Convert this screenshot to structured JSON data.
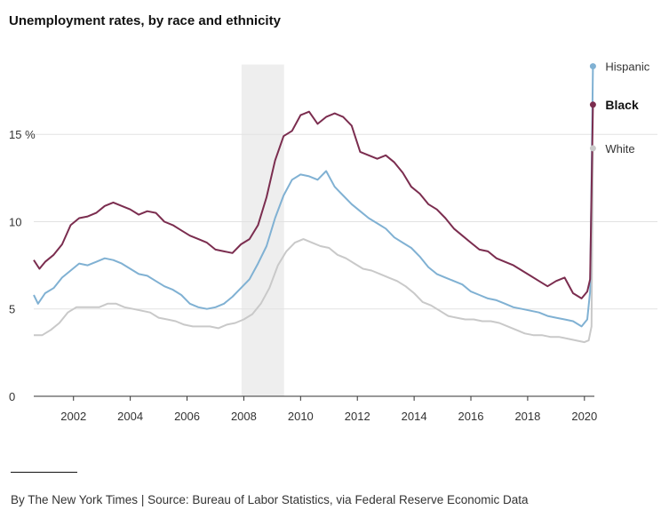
{
  "title": "Unemployment rates, by race and ethnicity",
  "credit": "By The New York Times | Source: Bureau of Labor Statistics, via Federal Reserve Economic Data",
  "chart_data": {
    "type": "line",
    "title": "Unemployment rates, by race and ethnicity",
    "xlabel": "",
    "ylabel": "",
    "xlim": [
      2000.6,
      2020.35
    ],
    "ylim": [
      0,
      19
    ],
    "x_ticks": [
      2002,
      2004,
      2006,
      2008,
      2010,
      2012,
      2014,
      2016,
      2018,
      2020
    ],
    "x_tick_labels": [
      "2002",
      "2004",
      "2006",
      "2008",
      "2010",
      "2012",
      "2014",
      "2016",
      "2018",
      "2020"
    ],
    "y_ticks": [
      0,
      5,
      10,
      15
    ],
    "y_tick_labels": [
      "0",
      "5",
      "10",
      "15 %"
    ],
    "grid": "horizontal",
    "shaded_period": [
      2007.92,
      2009.42
    ],
    "shade_color": "#eeeeee",
    "series": [
      {
        "name": "Hispanic",
        "color": "#80b1d3",
        "bold_label": false,
        "points": [
          [
            2000.6,
            5.8
          ],
          [
            2000.75,
            5.3
          ],
          [
            2001.0,
            5.9
          ],
          [
            2001.3,
            6.2
          ],
          [
            2001.6,
            6.8
          ],
          [
            2001.9,
            7.2
          ],
          [
            2002.2,
            7.6
          ],
          [
            2002.5,
            7.5
          ],
          [
            2002.8,
            7.7
          ],
          [
            2003.1,
            7.9
          ],
          [
            2003.4,
            7.8
          ],
          [
            2003.7,
            7.6
          ],
          [
            2004.0,
            7.3
          ],
          [
            2004.3,
            7.0
          ],
          [
            2004.6,
            6.9
          ],
          [
            2004.9,
            6.6
          ],
          [
            2005.2,
            6.3
          ],
          [
            2005.5,
            6.1
          ],
          [
            2005.8,
            5.8
          ],
          [
            2006.1,
            5.3
          ],
          [
            2006.4,
            5.1
          ],
          [
            2006.7,
            5.0
          ],
          [
            2007.0,
            5.1
          ],
          [
            2007.3,
            5.3
          ],
          [
            2007.6,
            5.7
          ],
          [
            2007.9,
            6.2
          ],
          [
            2008.2,
            6.7
          ],
          [
            2008.5,
            7.6
          ],
          [
            2008.8,
            8.6
          ],
          [
            2009.1,
            10.2
          ],
          [
            2009.4,
            11.5
          ],
          [
            2009.7,
            12.4
          ],
          [
            2010.0,
            12.7
          ],
          [
            2010.3,
            12.6
          ],
          [
            2010.6,
            12.4
          ],
          [
            2010.9,
            12.9
          ],
          [
            2011.2,
            12.0
          ],
          [
            2011.5,
            11.5
          ],
          [
            2011.8,
            11.0
          ],
          [
            2012.1,
            10.6
          ],
          [
            2012.4,
            10.2
          ],
          [
            2012.7,
            9.9
          ],
          [
            2013.0,
            9.6
          ],
          [
            2013.3,
            9.1
          ],
          [
            2013.6,
            8.8
          ],
          [
            2013.9,
            8.5
          ],
          [
            2014.2,
            8.0
          ],
          [
            2014.5,
            7.4
          ],
          [
            2014.8,
            7.0
          ],
          [
            2015.1,
            6.8
          ],
          [
            2015.4,
            6.6
          ],
          [
            2015.7,
            6.4
          ],
          [
            2016.0,
            6.0
          ],
          [
            2016.3,
            5.8
          ],
          [
            2016.6,
            5.6
          ],
          [
            2016.9,
            5.5
          ],
          [
            2017.2,
            5.3
          ],
          [
            2017.5,
            5.1
          ],
          [
            2017.8,
            5.0
          ],
          [
            2018.1,
            4.9
          ],
          [
            2018.4,
            4.8
          ],
          [
            2018.7,
            4.6
          ],
          [
            2019.0,
            4.5
          ],
          [
            2019.3,
            4.4
          ],
          [
            2019.6,
            4.3
          ],
          [
            2019.9,
            4.0
          ],
          [
            2020.1,
            4.4
          ],
          [
            2020.2,
            6.0
          ],
          [
            2020.3,
            18.9
          ]
        ]
      },
      {
        "name": "Black",
        "color": "#7b2d4f",
        "bold_label": true,
        "points": [
          [
            2000.6,
            7.8
          ],
          [
            2000.8,
            7.3
          ],
          [
            2001.0,
            7.7
          ],
          [
            2001.3,
            8.1
          ],
          [
            2001.6,
            8.7
          ],
          [
            2001.9,
            9.8
          ],
          [
            2002.2,
            10.2
          ],
          [
            2002.5,
            10.3
          ],
          [
            2002.8,
            10.5
          ],
          [
            2003.1,
            10.9
          ],
          [
            2003.4,
            11.1
          ],
          [
            2003.7,
            10.9
          ],
          [
            2004.0,
            10.7
          ],
          [
            2004.3,
            10.4
          ],
          [
            2004.6,
            10.6
          ],
          [
            2004.9,
            10.5
          ],
          [
            2005.2,
            10.0
          ],
          [
            2005.5,
            9.8
          ],
          [
            2005.8,
            9.5
          ],
          [
            2006.1,
            9.2
          ],
          [
            2006.4,
            9.0
          ],
          [
            2006.7,
            8.8
          ],
          [
            2007.0,
            8.4
          ],
          [
            2007.3,
            8.3
          ],
          [
            2007.6,
            8.2
          ],
          [
            2007.9,
            8.7
          ],
          [
            2008.2,
            9.0
          ],
          [
            2008.5,
            9.8
          ],
          [
            2008.8,
            11.4
          ],
          [
            2009.1,
            13.5
          ],
          [
            2009.4,
            14.9
          ],
          [
            2009.7,
            15.2
          ],
          [
            2010.0,
            16.1
          ],
          [
            2010.3,
            16.3
          ],
          [
            2010.6,
            15.6
          ],
          [
            2010.9,
            16.0
          ],
          [
            2011.2,
            16.2
          ],
          [
            2011.5,
            16.0
          ],
          [
            2011.8,
            15.5
          ],
          [
            2012.1,
            14.0
          ],
          [
            2012.4,
            13.8
          ],
          [
            2012.7,
            13.6
          ],
          [
            2013.0,
            13.8
          ],
          [
            2013.3,
            13.4
          ],
          [
            2013.6,
            12.8
          ],
          [
            2013.9,
            12.0
          ],
          [
            2014.2,
            11.6
          ],
          [
            2014.5,
            11.0
          ],
          [
            2014.8,
            10.7
          ],
          [
            2015.1,
            10.2
          ],
          [
            2015.4,
            9.6
          ],
          [
            2015.7,
            9.2
          ],
          [
            2016.0,
            8.8
          ],
          [
            2016.3,
            8.4
          ],
          [
            2016.6,
            8.3
          ],
          [
            2016.9,
            7.9
          ],
          [
            2017.2,
            7.7
          ],
          [
            2017.5,
            7.5
          ],
          [
            2017.8,
            7.2
          ],
          [
            2018.1,
            6.9
          ],
          [
            2018.4,
            6.6
          ],
          [
            2018.7,
            6.3
          ],
          [
            2019.0,
            6.6
          ],
          [
            2019.3,
            6.8
          ],
          [
            2019.6,
            5.9
          ],
          [
            2019.9,
            5.6
          ],
          [
            2020.1,
            6.0
          ],
          [
            2020.2,
            6.7
          ],
          [
            2020.3,
            16.7
          ]
        ]
      },
      {
        "name": "White",
        "color": "#c9c9c9",
        "bold_label": false,
        "points": [
          [
            2000.6,
            3.5
          ],
          [
            2000.9,
            3.5
          ],
          [
            2001.2,
            3.8
          ],
          [
            2001.5,
            4.2
          ],
          [
            2001.8,
            4.8
          ],
          [
            2002.1,
            5.1
          ],
          [
            2002.5,
            5.1
          ],
          [
            2002.9,
            5.1
          ],
          [
            2003.2,
            5.3
          ],
          [
            2003.5,
            5.3
          ],
          [
            2003.8,
            5.1
          ],
          [
            2004.1,
            5.0
          ],
          [
            2004.4,
            4.9
          ],
          [
            2004.7,
            4.8
          ],
          [
            2005.0,
            4.5
          ],
          [
            2005.3,
            4.4
          ],
          [
            2005.6,
            4.3
          ],
          [
            2005.9,
            4.1
          ],
          [
            2006.2,
            4.0
          ],
          [
            2006.5,
            4.0
          ],
          [
            2006.8,
            4.0
          ],
          [
            2007.1,
            3.9
          ],
          [
            2007.4,
            4.1
          ],
          [
            2007.7,
            4.2
          ],
          [
            2008.0,
            4.4
          ],
          [
            2008.3,
            4.7
          ],
          [
            2008.6,
            5.3
          ],
          [
            2008.9,
            6.2
          ],
          [
            2009.2,
            7.5
          ],
          [
            2009.5,
            8.3
          ],
          [
            2009.8,
            8.8
          ],
          [
            2010.1,
            9.0
          ],
          [
            2010.4,
            8.8
          ],
          [
            2010.7,
            8.6
          ],
          [
            2011.0,
            8.5
          ],
          [
            2011.3,
            8.1
          ],
          [
            2011.6,
            7.9
          ],
          [
            2011.9,
            7.6
          ],
          [
            2012.2,
            7.3
          ],
          [
            2012.5,
            7.2
          ],
          [
            2012.8,
            7.0
          ],
          [
            2013.1,
            6.8
          ],
          [
            2013.4,
            6.6
          ],
          [
            2013.7,
            6.3
          ],
          [
            2014.0,
            5.9
          ],
          [
            2014.3,
            5.4
          ],
          [
            2014.6,
            5.2
          ],
          [
            2014.9,
            4.9
          ],
          [
            2015.2,
            4.6
          ],
          [
            2015.5,
            4.5
          ],
          [
            2015.8,
            4.4
          ],
          [
            2016.1,
            4.4
          ],
          [
            2016.4,
            4.3
          ],
          [
            2016.7,
            4.3
          ],
          [
            2017.0,
            4.2
          ],
          [
            2017.3,
            4.0
          ],
          [
            2017.6,
            3.8
          ],
          [
            2017.9,
            3.6
          ],
          [
            2018.2,
            3.5
          ],
          [
            2018.5,
            3.5
          ],
          [
            2018.8,
            3.4
          ],
          [
            2019.1,
            3.4
          ],
          [
            2019.4,
            3.3
          ],
          [
            2019.7,
            3.2
          ],
          [
            2020.0,
            3.1
          ],
          [
            2020.15,
            3.2
          ],
          [
            2020.25,
            4.0
          ],
          [
            2020.3,
            14.2
          ]
        ]
      }
    ]
  }
}
